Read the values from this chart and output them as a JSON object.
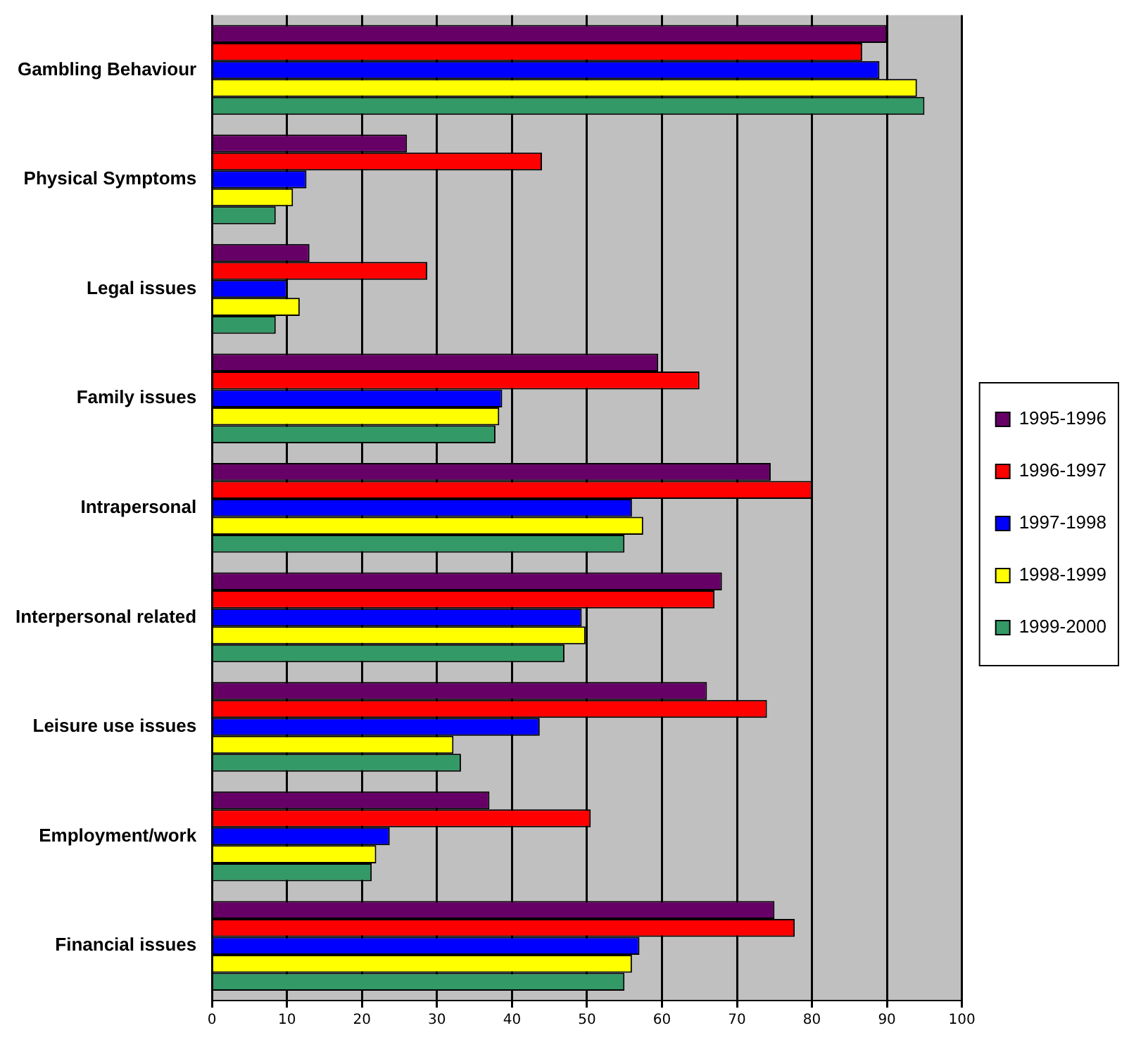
{
  "chart_data": {
    "type": "bar",
    "orientation": "horizontal",
    "categories": [
      "Gambling Behaviour",
      "Physical Symptoms",
      "Legal issues",
      "Family issues",
      "Intrapersonal",
      "Interpersonal related",
      "Leisure use issues",
      "Employment/work",
      "Financial issues"
    ],
    "series": [
      {
        "name": "1995-1996",
        "color": "#660066",
        "values": [
          90,
          26,
          13,
          59.5,
          74.5,
          68,
          66,
          37,
          75
        ]
      },
      {
        "name": "1996-1997",
        "color": "#ff0000",
        "values": [
          86.7,
          44,
          28.7,
          65,
          80,
          67,
          74,
          50.5,
          77.7
        ]
      },
      {
        "name": "1997-1998",
        "color": "#0000ff",
        "values": [
          89,
          12.6,
          10,
          38.7,
          56,
          49.3,
          43.7,
          23.7,
          57
        ]
      },
      {
        "name": "1998-1999",
        "color": "#ffff00",
        "values": [
          94,
          10.8,
          11.7,
          38.3,
          57.5,
          49.8,
          32.2,
          21.9,
          56
        ]
      },
      {
        "name": "1999-2000",
        "color": "#339966",
        "values": [
          95,
          8.5,
          8.5,
          37.8,
          55,
          47,
          33.2,
          21.3,
          55
        ]
      }
    ],
    "xlim": [
      0,
      100
    ],
    "xticks": [
      0,
      10,
      20,
      30,
      40,
      50,
      60,
      70,
      80,
      90,
      100
    ],
    "grid": "x",
    "legend": "right"
  }
}
